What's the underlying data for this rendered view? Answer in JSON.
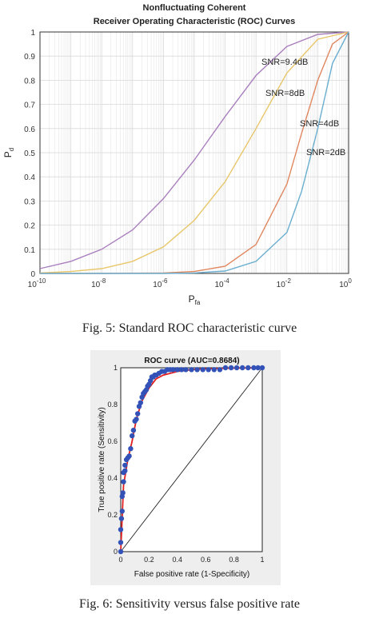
{
  "charts": [
    {
      "title_line1": "Nonfluctuating Coherent",
      "title_line2": "Receiver Operating Characteristic (ROC) Curves",
      "ylabel_main": "P",
      "ylabel_sub": "d",
      "xlabel_main": "P",
      "xlabel_sub": "fa",
      "caption": "Fig. 5: Standard ROC characteristic curve",
      "colors": {
        "snr94": "#a97fbd",
        "snr8": "#e8c66a",
        "snr4": "#e0875f",
        "snr2": "#6aaed0",
        "grid": "#d9d9d9"
      }
    },
    {
      "title": "ROC curve (AUC=0.8684)",
      "xlabel": "False positive rate (1-Specificity)",
      "ylabel": "True positive rate (Sensitivity)",
      "caption": "Fig. 6: Sensitivity versus false positive rate",
      "colors": {
        "points": "#3352b8",
        "fit": "#e02020",
        "diagonal": "#222222",
        "background": "#eeeeee"
      }
    }
  ],
  "chart_data": [
    {
      "type": "line",
      "xscale": "log",
      "xlim": [
        1e-10,
        1
      ],
      "ylim": [
        0,
        1
      ],
      "grid": true,
      "x_ticks": [
        1e-10,
        1e-08,
        1e-06,
        0.0001,
        0.01,
        1
      ],
      "x_tick_labels": [
        {
          "base": "10",
          "exp": "-10"
        },
        {
          "base": "10",
          "exp": "-8"
        },
        {
          "base": "10",
          "exp": "-6"
        },
        {
          "base": "10",
          "exp": "-4"
        },
        {
          "base": "10",
          "exp": "-2"
        },
        {
          "base": "10",
          "exp": "0"
        }
      ],
      "y_ticks": [
        0,
        0.1,
        0.2,
        0.3,
        0.4,
        0.5,
        0.6,
        0.7,
        0.8,
        0.9,
        1
      ],
      "y_tick_labels": [
        "0",
        "0.1",
        "0.2",
        "0.3",
        "0.4",
        "0.5",
        "0.6",
        "0.7",
        "0.8",
        "0.9",
        "1"
      ],
      "series": [
        {
          "name": "SNR=9.4dB",
          "x": [
            1e-10,
            1e-09,
            1e-08,
            1e-07,
            1e-06,
            1e-05,
            0.0001,
            0.001,
            0.01,
            0.1,
            1
          ],
          "y": [
            0.02,
            0.05,
            0.1,
            0.18,
            0.31,
            0.47,
            0.65,
            0.82,
            0.94,
            0.99,
            1
          ]
        },
        {
          "name": "SNR=8dB",
          "x": [
            1e-10,
            1e-09,
            1e-08,
            1e-07,
            1e-06,
            1e-05,
            0.0001,
            0.001,
            0.01,
            0.1,
            1
          ],
          "y": [
            0.002,
            0.008,
            0.02,
            0.05,
            0.11,
            0.22,
            0.38,
            0.6,
            0.83,
            0.97,
            1
          ]
        },
        {
          "name": "SNR=4dB",
          "x": [
            1e-10,
            1e-08,
            1e-06,
            1e-05,
            0.0001,
            0.001,
            0.01,
            0.03,
            0.1,
            0.3,
            1
          ],
          "y": [
            0,
            0,
            0.002,
            0.008,
            0.03,
            0.12,
            0.37,
            0.58,
            0.8,
            0.95,
            1
          ]
        },
        {
          "name": "SNR=2dB",
          "x": [
            1e-10,
            1e-06,
            1e-05,
            0.0001,
            0.001,
            0.01,
            0.03,
            0.1,
            0.3,
            1
          ],
          "y": [
            0,
            0,
            0.002,
            0.01,
            0.05,
            0.17,
            0.34,
            0.6,
            0.87,
            1
          ]
        }
      ],
      "annotations": [
        "SNR=9.4dB",
        "SNR=8dB",
        "SNR=4dB",
        "SNR=2dB"
      ]
    },
    {
      "type": "scatter",
      "xlim": [
        0,
        1
      ],
      "ylim": [
        0,
        1
      ],
      "x_tick_labels": [
        "0",
        "0.2",
        "0.4",
        "0.6",
        "0.8",
        "1"
      ],
      "y_tick_labels": [
        "0",
        "0.2",
        "0.4",
        "0.6",
        "0.8",
        "1"
      ],
      "auc": 0.8684,
      "series": [
        {
          "x": [
            0,
            0,
            0,
            0.005,
            0.01,
            0.01,
            0.015,
            0.02,
            0.02,
            0.03,
            0.03,
            0.04,
            0.05,
            0.06,
            0.07,
            0.08,
            0.09,
            0.1,
            0.11,
            0.12,
            0.13,
            0.14,
            0.15,
            0.16,
            0.17,
            0.18,
            0.19,
            0.2,
            0.21,
            0.22,
            0.23,
            0.24,
            0.25,
            0.27,
            0.29,
            0.31,
            0.33,
            0.35,
            0.37,
            0.4,
            0.43,
            0.46,
            0.5,
            0.54,
            0.58,
            0.62,
            0.66,
            0.7,
            0.74,
            0.78,
            0.82,
            0.86,
            0.9,
            0.94,
            0.97,
            1
          ],
          "y": [
            0,
            0.05,
            0.12,
            0.18,
            0.22,
            0.3,
            0.32,
            0.38,
            0.43,
            0.44,
            0.47,
            0.5,
            0.51,
            0.52,
            0.56,
            0.63,
            0.66,
            0.71,
            0.72,
            0.75,
            0.79,
            0.81,
            0.84,
            0.86,
            0.87,
            0.88,
            0.9,
            0.91,
            0.93,
            0.95,
            0.95,
            0.96,
            0.96,
            0.97,
            0.98,
            0.98,
            0.99,
            0.99,
            0.99,
            0.99,
            0.99,
            0.99,
            0.99,
            0.99,
            0.99,
            0.99,
            0.99,
            0.99,
            1,
            1,
            1,
            1,
            1,
            1,
            1,
            1
          ]
        },
        {
          "x": [
            0,
            0.02,
            0.05,
            0.08,
            0.11,
            0.15,
            0.2,
            0.25,
            0.3,
            0.4,
            0.5,
            0.6,
            0.8,
            1
          ],
          "y": [
            0,
            0.36,
            0.5,
            0.6,
            0.72,
            0.82,
            0.89,
            0.94,
            0.96,
            0.98,
            0.99,
            0.995,
            0.998,
            1
          ]
        },
        {
          "x": [
            0,
            1
          ],
          "y": [
            0,
            1
          ]
        }
      ]
    }
  ]
}
